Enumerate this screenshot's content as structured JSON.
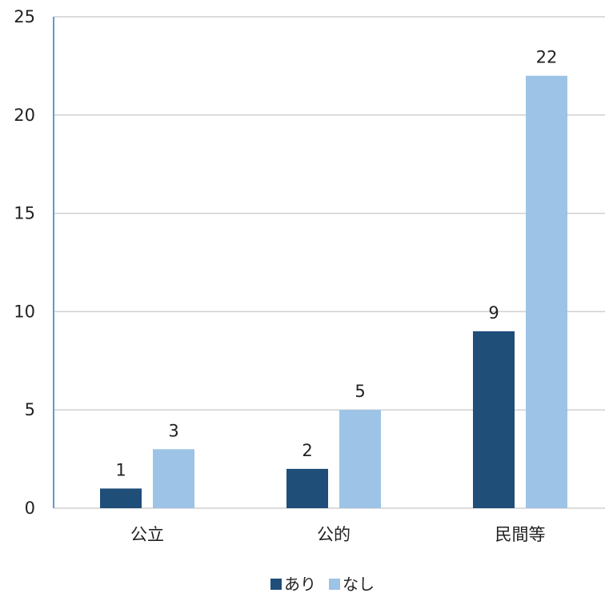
{
  "chart_data": {
    "type": "bar",
    "categories": [
      "公立",
      "公的",
      "民間等"
    ],
    "series": [
      {
        "name": "あり",
        "values": [
          1,
          2,
          9
        ],
        "color": "#1f4e79"
      },
      {
        "name": "なし",
        "values": [
          3,
          5,
          22
        ],
        "color": "#9dc3e6"
      }
    ],
    "ylim": [
      0,
      25
    ],
    "yticks": [
      0,
      5,
      10,
      15,
      20,
      25
    ],
    "grid": true,
    "legend_position": "bottom",
    "data_labels": true
  },
  "colors": {
    "axis": "#5b9bd5",
    "grid": "#d0d0d0"
  }
}
